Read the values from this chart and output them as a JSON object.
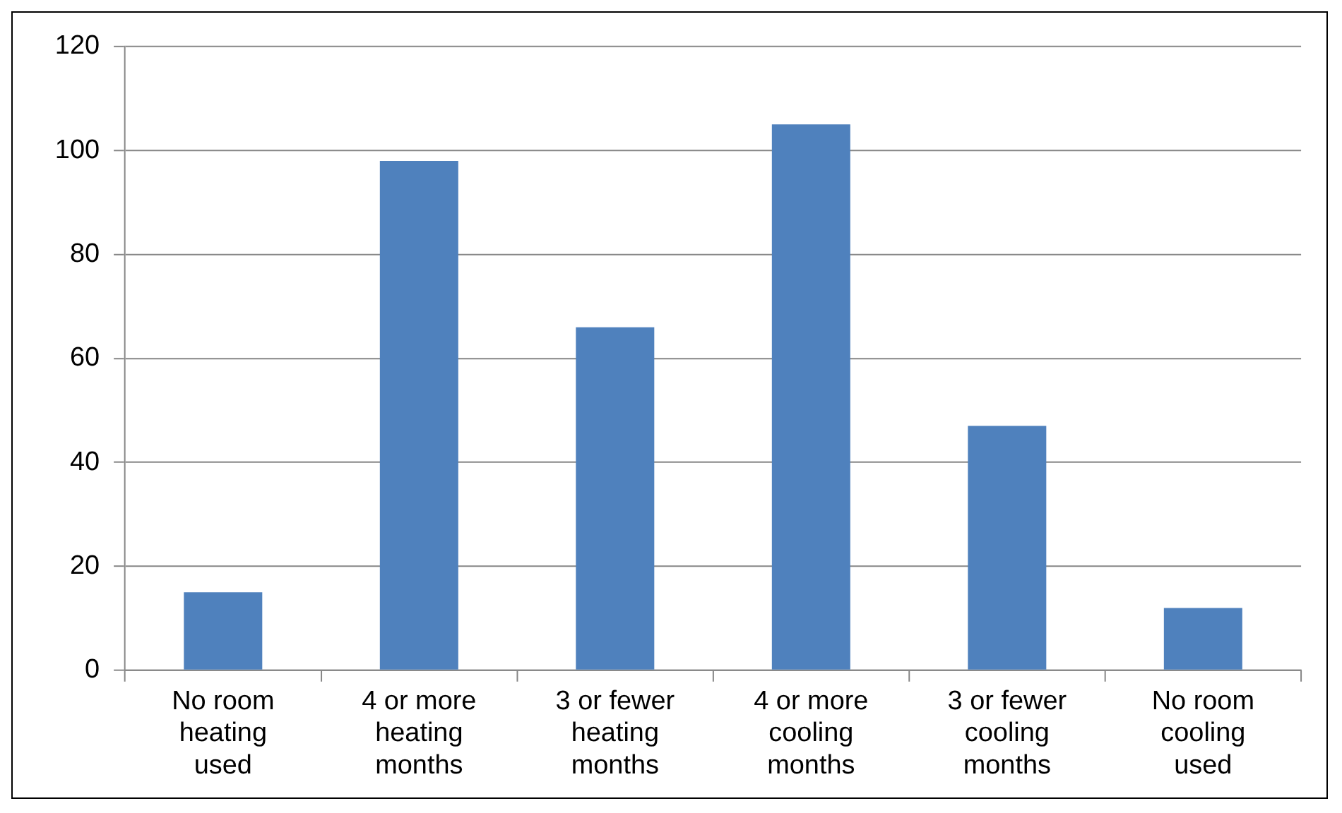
{
  "chart_data": {
    "type": "bar",
    "categories": [
      "No room heating used",
      "4 or more heating months",
      "3 or fewer heating months",
      "4 or more cooling months",
      "3 or fewer cooling months",
      "No room cooling used"
    ],
    "values": [
      15,
      98,
      66,
      105,
      47,
      12
    ],
    "color": "#4f81bd",
    "ylim": [
      0,
      120
    ],
    "yticks": [
      0,
      20,
      40,
      60,
      80,
      100,
      120
    ],
    "grid": "y",
    "legend": false
  }
}
